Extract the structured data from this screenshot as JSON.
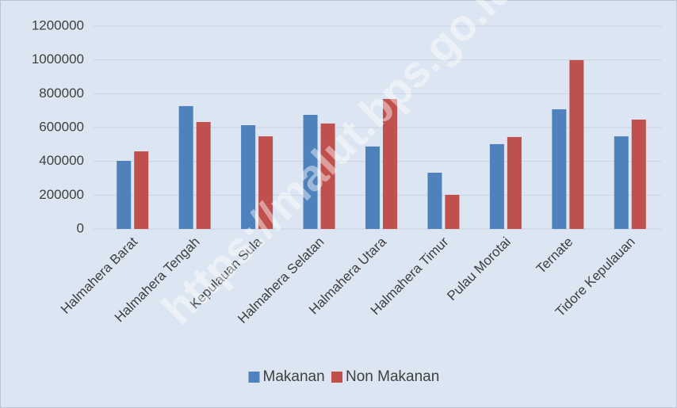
{
  "chart_data": {
    "type": "bar",
    "categories": [
      "Halmahera Barat",
      "Halmahera Tengah",
      "Kepulauan Sula",
      "Halmahera Selatan",
      "Halmahera Utara",
      "Halmahera Timur",
      "Pulau Morotai",
      "Ternate",
      "Tidore Kepulauan"
    ],
    "series": [
      {
        "name": "Makanan",
        "color": "#4f81bd",
        "values": [
          403000,
          727000,
          614000,
          675000,
          488000,
          333000,
          502000,
          708000,
          548000
        ]
      },
      {
        "name": "Non Makanan",
        "color": "#c0504d",
        "values": [
          459000,
          633000,
          548000,
          624000,
          769000,
          202000,
          544000,
          999000,
          647000
        ]
      }
    ],
    "ylim": [
      0,
      1200000
    ],
    "yticks": [
      0,
      200000,
      400000,
      600000,
      800000,
      1000000,
      1200000
    ],
    "grid": true,
    "legend": "bottom",
    "watermark": "https://malut.bps.go.id"
  }
}
